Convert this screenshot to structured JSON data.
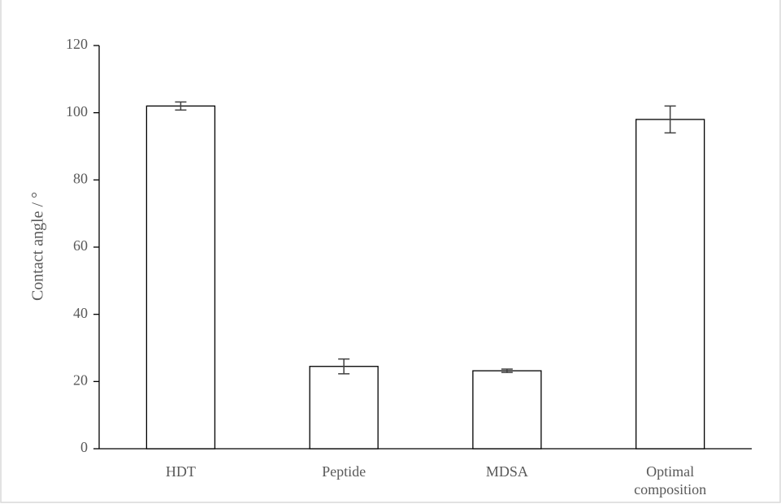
{
  "chart_data": {
    "type": "bar",
    "categories": [
      [
        "HDT"
      ],
      [
        "Peptide"
      ],
      [
        "MDSA"
      ],
      [
        "Optimal",
        "composition"
      ]
    ],
    "values": [
      102,
      24.5,
      23.2,
      98
    ],
    "errors": [
      1.2,
      2.2,
      0.5,
      4
    ],
    "xlabel": "",
    "ylabel": "Contact angle / °",
    "ylim": [
      0,
      120
    ],
    "yticks": [
      0,
      20,
      40,
      60,
      80,
      100,
      120
    ],
    "grid": false,
    "legend": "none",
    "colors": {
      "bar_fill": "#ffffff",
      "bar_stroke": "#000000",
      "axis": "#000000",
      "error_bar": "#404040",
      "text": "#595959",
      "frame": "#d9d9d9"
    }
  }
}
